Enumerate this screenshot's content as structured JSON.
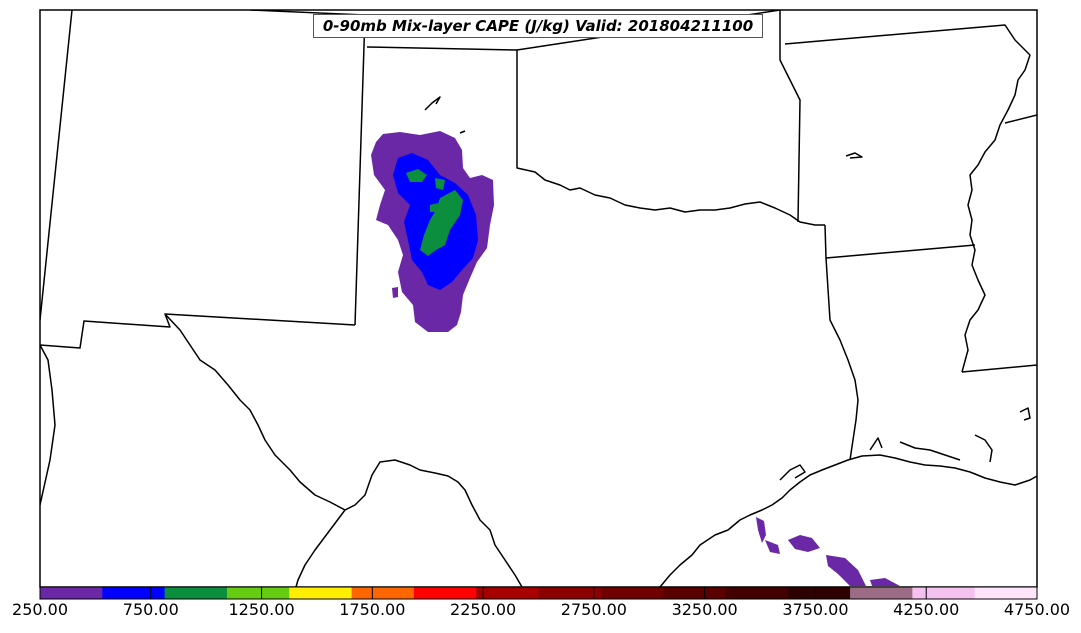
{
  "title": "0-90mb Mix-layer CAPE (J/kg) Valid: 201804211100",
  "colorbar": {
    "colors": [
      "#6a27a6",
      "#0000ff",
      "#0b8e3e",
      "#66cc11",
      "#ffee00",
      "#ff6600",
      "#ff0000",
      "#a60000",
      "#8b0000",
      "#700000",
      "#5a0000",
      "#440000",
      "#2e0000",
      "#9c6b86",
      "#f5c2f0",
      "#ffe4fb"
    ],
    "tick_labels": [
      "250.00",
      "750.00",
      "1250.00",
      "1750.00",
      "2250.00",
      "2750.00",
      "3250.00",
      "3750.00",
      "4250.00",
      "4750.00"
    ]
  },
  "legend_colors": {
    "cape_250_750": "#6a27a6",
    "cape_750_1000": "#0000ff",
    "cape_1000_1250": "#0b8e3e"
  }
}
